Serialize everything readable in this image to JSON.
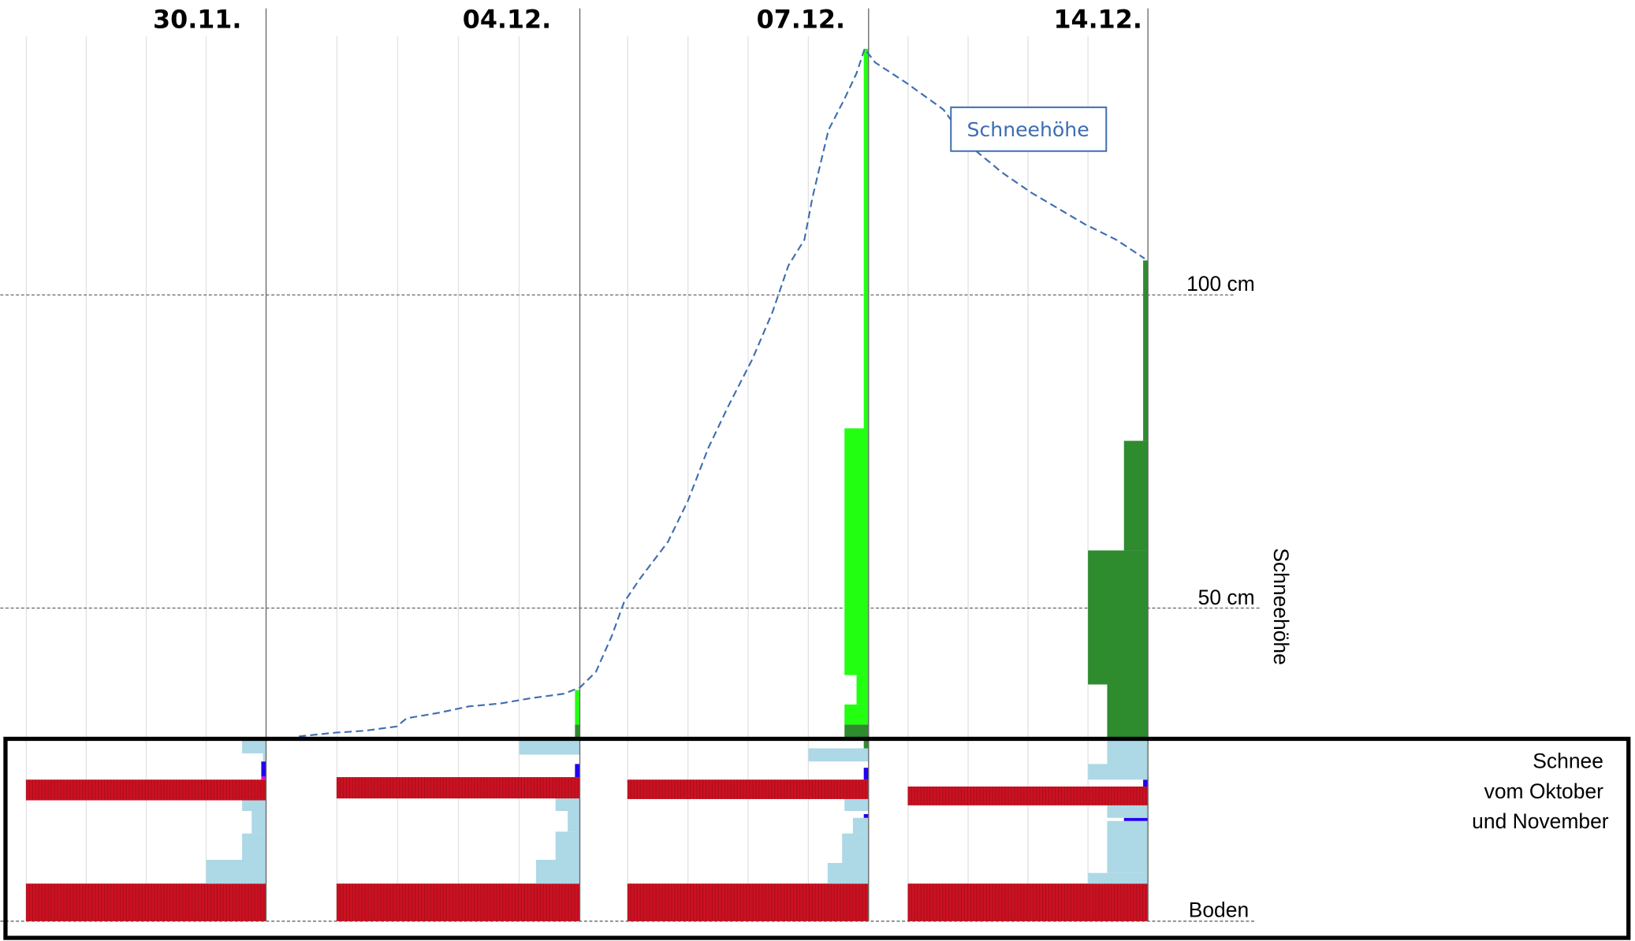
{
  "chart_data": {
    "type": "snow-profile-timeseries",
    "dates": [
      "30.11.",
      "04.12.",
      "07.12.",
      "14.12."
    ],
    "y_axis": {
      "label": "Schneehöhe",
      "unit": "cm",
      "ticks": [
        {
          "value": 100,
          "label": "100 cm"
        },
        {
          "value": 50,
          "label": "50 cm"
        },
        {
          "value": 0,
          "label": "Boden"
        }
      ],
      "range": [
        0,
        145
      ]
    },
    "legend": {
      "label": "Schneehöhe",
      "placement": "top-right",
      "color": "#3d6db0"
    },
    "old_snow_box": {
      "lines": [
        "Schnee",
        "vom Oktober",
        "und November"
      ],
      "range_cm": [
        0,
        29
      ]
    },
    "colors": {
      "crust": "#cc1122",
      "old_snow": "#add8e6",
      "new_snow": "#22ff11",
      "settled_new_snow": "#2e8b2e",
      "weak_layer": "#2200ee",
      "marker": "#ee00cc",
      "snow_depth_line": "#3d6db0"
    },
    "snow_depth_line": {
      "name": "Schneehöhe",
      "style": "dashed",
      "points": [
        [
          "30.11. 10",
          29.5
        ],
        [
          "30.11. 21",
          30.1
        ],
        [
          "01.12. 06",
          30.4
        ],
        [
          "01.12. 16",
          31.1
        ],
        [
          "01.12. 19",
          32.4
        ],
        [
          "02.12. 05",
          33.3
        ],
        [
          "02.12. 14",
          34.3
        ],
        [
          "03.12. 00",
          34.8
        ],
        [
          "03.12. 09",
          35.6
        ],
        [
          "03.12. 19",
          36.3
        ],
        [
          "04.12. 00",
          37.3
        ],
        [
          "04.12. 04",
          39.8
        ],
        [
          "04.12. 08",
          45.6
        ],
        [
          "04.12. 11",
          50.9
        ],
        [
          "04.12. 15",
          54.7
        ],
        [
          "04.12. 22",
          60.6
        ],
        [
          "05.12. 03",
          67.2
        ],
        [
          "05.12. 08",
          75.5
        ],
        [
          "05.12. 13",
          82.2
        ],
        [
          "05.12. 19",
          89.7
        ],
        [
          "06.12. 00",
          97.2
        ],
        [
          "06.12. 04",
          104.7
        ],
        [
          "06.12. 08",
          108.8
        ],
        [
          "06.12. 10",
          115.5
        ],
        [
          "06.12. 14",
          126.3
        ],
        [
          "06.12. 18",
          131.3
        ],
        [
          "06.12. 21",
          135.4
        ],
        [
          "06.12. 23",
          139.3
        ],
        [
          "07.12. 04",
          137.1
        ],
        [
          "07.12. 23",
          133.8
        ],
        [
          "08.12. 21",
          129.6
        ],
        [
          "09.12. 13",
          123.8
        ],
        [
          "10.12. 08",
          119.6
        ],
        [
          "11.12. 02",
          116.3
        ],
        [
          "12.12. 10",
          111.3
        ],
        [
          "13.12. 05",
          108.8
        ],
        [
          "13.12. 22",
          105.8
        ]
      ]
    },
    "profiles": [
      {
        "date": "30.11.",
        "layers": [
          {
            "from": 0,
            "to": 6,
            "hardness": 1,
            "type": "crust"
          },
          {
            "from": 6,
            "to": 9.8,
            "hardness": 0.25,
            "type": "old_snow"
          },
          {
            "from": 9.8,
            "to": 14,
            "hardness": 0.1,
            "type": "old_snow"
          },
          {
            "from": 14,
            "to": 17.6,
            "hardness": 0.06,
            "type": "old_snow"
          },
          {
            "from": 17.6,
            "to": 19.3,
            "hardness": 0.1,
            "type": "old_snow"
          },
          {
            "from": 19.3,
            "to": 22.6,
            "hardness": 1,
            "type": "crust"
          },
          {
            "from": 22.6,
            "to": 23.1,
            "hardness": 0.02,
            "type": "marker"
          },
          {
            "from": 23.1,
            "to": 25.5,
            "hardness": 0.02,
            "type": "weak_layer"
          },
          {
            "from": 25.5,
            "to": 26.8,
            "hardness": 0.01,
            "type": "old_snow"
          },
          {
            "from": 26.8,
            "to": 29.1,
            "hardness": 0.1,
            "type": "old_snow"
          }
        ]
      },
      {
        "date": "04.12.",
        "layers": [
          {
            "from": 0,
            "to": 6,
            "hardness": 1,
            "type": "crust"
          },
          {
            "from": 6,
            "to": 9.8,
            "hardness": 0.18,
            "type": "old_snow"
          },
          {
            "from": 9.8,
            "to": 14.3,
            "hardness": 0.1,
            "type": "old_snow"
          },
          {
            "from": 14.3,
            "to": 17.6,
            "hardness": 0.05,
            "type": "old_snow"
          },
          {
            "from": 17.6,
            "to": 19.6,
            "hardness": 0.1,
            "type": "old_snow"
          },
          {
            "from": 19.6,
            "to": 23,
            "hardness": 1,
            "type": "crust"
          },
          {
            "from": 23,
            "to": 25.1,
            "hardness": 0.02,
            "type": "weak_layer"
          },
          {
            "from": 26.6,
            "to": 28.8,
            "hardness": 0.25,
            "type": "old_snow"
          },
          {
            "from": 29.1,
            "to": 31.4,
            "hardness": 0.02,
            "type": "settled_new_snow"
          },
          {
            "from": 31.4,
            "to": 36.9,
            "hardness": 0.02,
            "type": "new_snow"
          }
        ]
      },
      {
        "date": "07.12.",
        "layers": [
          {
            "from": 0,
            "to": 6,
            "hardness": 1,
            "type": "crust"
          },
          {
            "from": 6,
            "to": 9.3,
            "hardness": 0.17,
            "type": "old_snow"
          },
          {
            "from": 9.3,
            "to": 14,
            "hardness": 0.11,
            "type": "old_snow"
          },
          {
            "from": 14,
            "to": 16.5,
            "hardness": 0.065,
            "type": "old_snow"
          },
          {
            "from": 16.5,
            "to": 17.1,
            "hardness": 0.02,
            "type": "weak_layer"
          },
          {
            "from": 17.6,
            "to": 19.5,
            "hardness": 0.1,
            "type": "old_snow"
          },
          {
            "from": 19.5,
            "to": 22.6,
            "hardness": 1,
            "type": "crust"
          },
          {
            "from": 22.6,
            "to": 24.5,
            "hardness": 0.02,
            "type": "weak_layer"
          },
          {
            "from": 25.5,
            "to": 27.6,
            "hardness": 0.25,
            "type": "old_snow"
          },
          {
            "from": 27.6,
            "to": 29.1,
            "hardness": 0.02,
            "type": "settled_new_snow"
          },
          {
            "from": 29.1,
            "to": 31.4,
            "hardness": 0.1,
            "type": "settled_new_snow"
          },
          {
            "from": 31.4,
            "to": 34.6,
            "hardness": 0.1,
            "type": "new_snow"
          },
          {
            "from": 34.6,
            "to": 39.3,
            "hardness": 0.05,
            "type": "new_snow"
          },
          {
            "from": 39.3,
            "to": 78.7,
            "hardness": 0.1,
            "type": "new_snow"
          },
          {
            "from": 78.7,
            "to": 139.3,
            "hardness": 0.02,
            "type": "new_snow"
          }
        ]
      },
      {
        "date": "14.12.",
        "layers": [
          {
            "from": 0,
            "to": 6,
            "hardness": 1,
            "type": "crust"
          },
          {
            "from": 6,
            "to": 7.7,
            "hardness": 0.25,
            "type": "old_snow"
          },
          {
            "from": 7.7,
            "to": 16,
            "hardness": 0.17,
            "type": "old_snow"
          },
          {
            "from": 16,
            "to": 16.5,
            "hardness": 0.1,
            "type": "weak_layer"
          },
          {
            "from": 16.5,
            "to": 18.5,
            "hardness": 0.17,
            "type": "old_snow"
          },
          {
            "from": 18.5,
            "to": 21.5,
            "hardness": 1,
            "type": "crust"
          },
          {
            "from": 21.5,
            "to": 22.6,
            "hardness": 0.02,
            "type": "weak_layer"
          },
          {
            "from": 22.6,
            "to": 25.1,
            "hardness": 0.25,
            "type": "old_snow"
          },
          {
            "from": 25.1,
            "to": 29.1,
            "hardness": 0.17,
            "type": "old_snow"
          },
          {
            "from": 29.1,
            "to": 37.8,
            "hardness": 0.17,
            "type": "settled_new_snow"
          },
          {
            "from": 37.8,
            "to": 59.2,
            "hardness": 0.25,
            "type": "settled_new_snow"
          },
          {
            "from": 59.2,
            "to": 76.7,
            "hardness": 0.1,
            "type": "settled_new_snow"
          },
          {
            "from": 76.7,
            "to": 105.5,
            "hardness": 0.02,
            "type": "settled_new_snow"
          }
        ]
      }
    ]
  }
}
